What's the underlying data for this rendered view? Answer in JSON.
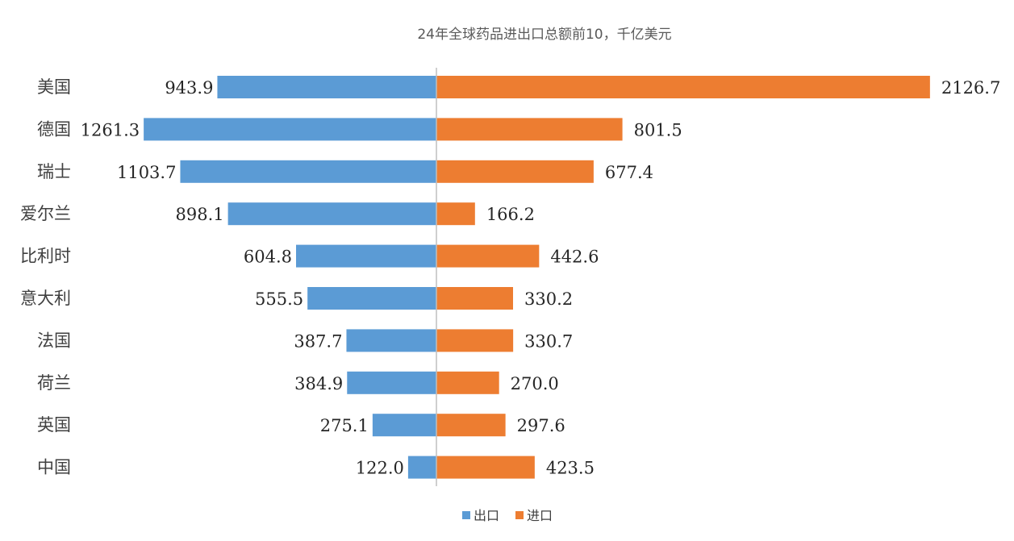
{
  "chart_data": {
    "type": "bar",
    "orientation": "horizontal-diverging",
    "title": "24年全球药品进出口总额前10，千亿美元",
    "categories": [
      "美国",
      "德国",
      "瑞士",
      "爱尔兰",
      "比利时",
      "意大利",
      "法国",
      "荷兰",
      "英国",
      "中国"
    ],
    "series": [
      {
        "name": "出口",
        "color": "#5B9BD5",
        "direction": "left",
        "values": [
          943.9,
          1261.3,
          1103.7,
          898.1,
          604.8,
          555.5,
          387.7,
          384.9,
          275.1,
          122.0
        ]
      },
      {
        "name": "进口",
        "color": "#ED7D31",
        "direction": "right",
        "values": [
          2126.7,
          801.5,
          677.4,
          166.2,
          442.6,
          330.2,
          330.7,
          270.0,
          297.6,
          423.5
        ]
      }
    ],
    "value_format": "0.0",
    "legend_position": "bottom-center",
    "grid": false
  }
}
